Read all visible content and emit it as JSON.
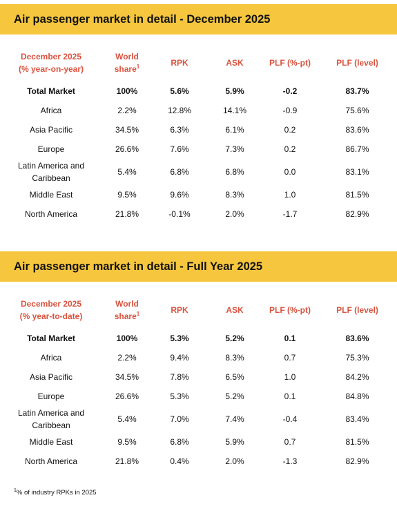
{
  "sections": [
    {
      "title": "Air passenger market in detail - December 2025",
      "header": {
        "region_line1": "December 2025",
        "region_line2": "(% year-on-year)",
        "world_share": "World share",
        "world_share_sup": "1",
        "rpk": "RPK",
        "ask": "ASK",
        "plf_pt": "PLF (%-pt)",
        "plf_level": "PLF (level)"
      },
      "rows": [
        {
          "region": "Total Market",
          "region2": "",
          "share": "100%",
          "rpk": "5.6%",
          "ask": "5.9%",
          "plf_pt": "-0.2",
          "plf_level": "83.7%"
        },
        {
          "region": "Africa",
          "region2": "",
          "share": "2.2%",
          "rpk": "12.8%",
          "ask": "14.1%",
          "plf_pt": "-0.9",
          "plf_level": "75.6%"
        },
        {
          "region": "Asia Pacific",
          "region2": "",
          "share": "34.5%",
          "rpk": "6.3%",
          "ask": "6.1%",
          "plf_pt": "0.2",
          "plf_level": "83.6%"
        },
        {
          "region": "Europe",
          "region2": "",
          "share": "26.6%",
          "rpk": "7.6%",
          "ask": "7.3%",
          "plf_pt": "0.2",
          "plf_level": "86.7%"
        },
        {
          "region": "Latin America and",
          "region2": "Caribbean",
          "share": "5.4%",
          "rpk": "6.8%",
          "ask": "6.8%",
          "plf_pt": "0.0",
          "plf_level": "83.1%"
        },
        {
          "region": "Middle East",
          "region2": "",
          "share": "9.5%",
          "rpk": "9.6%",
          "ask": "8.3%",
          "plf_pt": "1.0",
          "plf_level": "81.5%"
        },
        {
          "region": "North America",
          "region2": "",
          "share": "21.8%",
          "rpk": "-0.1%",
          "ask": "2.0%",
          "plf_pt": "-1.7",
          "plf_level": "82.9%"
        }
      ]
    },
    {
      "title": "Air passenger market in detail - Full Year 2025",
      "header": {
        "region_line1": "December 2025",
        "region_line2": "(% year-to-date)",
        "world_share": "World share",
        "world_share_sup": "1",
        "rpk": "RPK",
        "ask": "ASK",
        "plf_pt": "PLF (%-pt)",
        "plf_level": "PLF (level)"
      },
      "rows": [
        {
          "region": "Total Market",
          "region2": "",
          "share": "100%",
          "rpk": "5.3%",
          "ask": "5.2%",
          "plf_pt": "0.1",
          "plf_level": "83.6%"
        },
        {
          "region": "Africa",
          "region2": "",
          "share": "2.2%",
          "rpk": "9.4%",
          "ask": "8.3%",
          "plf_pt": "0.7",
          "plf_level": "75.3%"
        },
        {
          "region": "Asia Pacific",
          "region2": "",
          "share": "34.5%",
          "rpk": "7.8%",
          "ask": "6.5%",
          "plf_pt": "1.0",
          "plf_level": "84.2%"
        },
        {
          "region": "Europe",
          "region2": "",
          "share": "26.6%",
          "rpk": "5.3%",
          "ask": "5.2%",
          "plf_pt": "0.1",
          "plf_level": "84.8%"
        },
        {
          "region": "Latin America and",
          "region2": "Caribbean",
          "share": "5.4%",
          "rpk": "7.0%",
          "ask": "7.4%",
          "plf_pt": "-0.4",
          "plf_level": "83.4%"
        },
        {
          "region": "Middle East",
          "region2": "",
          "share": "9.5%",
          "rpk": "6.8%",
          "ask": "5.9%",
          "plf_pt": "0.7",
          "plf_level": "81.5%"
        },
        {
          "region": "North America",
          "region2": "",
          "share": "21.8%",
          "rpk": "0.4%",
          "ask": "2.0%",
          "plf_pt": "-1.3",
          "plf_level": "82.9%"
        }
      ]
    }
  ],
  "footnote": {
    "sup": "1",
    "text": "% of industry RPKs in 2025"
  }
}
